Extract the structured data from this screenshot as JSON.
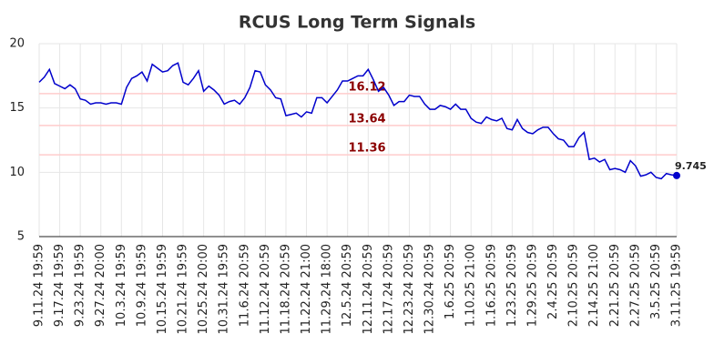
{
  "chart_data": {
    "type": "line",
    "title": "RCUS Long Term Signals",
    "categories": [
      "9.11.24 19:59",
      null,
      null,
      null,
      "9.17.24 19:59",
      null,
      null,
      null,
      "9.23.24 19:59",
      null,
      null,
      null,
      "9.27.24 20:00",
      null,
      null,
      null,
      "10.3.24 19:59",
      null,
      null,
      null,
      "10.9.24 19:59",
      null,
      null,
      null,
      "10.15.24 19:59",
      null,
      null,
      null,
      "10.21.24 19:59",
      null,
      null,
      null,
      "10.25.24 20:00",
      null,
      null,
      null,
      "10.31.24 19:59",
      null,
      null,
      null,
      "11.6.24 20:59",
      null,
      null,
      null,
      "11.12.24 20:59",
      null,
      null,
      null,
      "11.18.24 20:59",
      null,
      null,
      null,
      "11.22.24 21:00",
      null,
      null,
      null,
      "11.29.24 18:00",
      null,
      null,
      null,
      "12.5.24 20:59",
      null,
      null,
      null,
      "12.11.24 20:59",
      null,
      null,
      null,
      "12.17.24 20:59",
      null,
      null,
      null,
      "12.23.24 20:59",
      null,
      null,
      null,
      "12.30.24 20:59",
      null,
      null,
      null,
      "1.6.25 20:59",
      null,
      null,
      null,
      "1.10.25 21:00",
      null,
      null,
      null,
      "1.16.25 20:59",
      null,
      null,
      null,
      "1.23.25 20:59",
      null,
      null,
      null,
      "1.29.25 20:59",
      null,
      null,
      null,
      "2.4.25 20:59",
      null,
      null,
      null,
      "2.10.25 20:59",
      null,
      null,
      null,
      "2.14.25 21:00",
      null,
      null,
      null,
      "2.21.25 20:59",
      null,
      null,
      null,
      "2.27.25 20:59",
      null,
      null,
      null,
      "3.5.25 20:59",
      null,
      null,
      null,
      "3.11.25 19:59"
    ],
    "series": [
      {
        "name": "RCUS",
        "color": "#0000cc",
        "values": [
          17.0,
          17.4,
          18.0,
          16.9,
          16.7,
          16.5,
          16.8,
          16.5,
          15.7,
          15.6,
          15.3,
          15.4,
          15.4,
          15.3,
          15.4,
          15.4,
          15.3,
          16.6,
          17.3,
          17.5,
          17.8,
          17.1,
          18.4,
          18.1,
          17.8,
          17.9,
          18.3,
          18.5,
          17.0,
          16.8,
          17.3,
          17.9,
          16.3,
          16.7,
          16.4,
          16.0,
          15.3,
          15.5,
          15.6,
          15.3,
          15.8,
          16.6,
          17.9,
          17.8,
          16.8,
          16.4,
          15.8,
          15.7,
          14.4,
          14.5,
          14.6,
          14.3,
          14.7,
          14.6,
          15.8,
          15.8,
          15.4,
          15.9,
          16.4,
          17.1,
          17.1,
          17.3,
          17.5,
          17.5,
          18.0,
          17.2,
          16.3,
          16.6,
          16.0,
          15.2,
          15.5,
          15.5,
          16.0,
          15.9,
          15.9,
          15.3,
          14.9,
          14.9,
          15.2,
          15.1,
          14.9,
          15.3,
          14.9,
          14.9,
          14.2,
          13.9,
          13.8,
          14.3,
          14.1,
          14.0,
          14.2,
          13.4,
          13.3,
          14.1,
          13.4,
          13.1,
          13.0,
          13.3,
          13.5,
          13.5,
          13.0,
          12.6,
          12.5,
          12.0,
          12.0,
          12.7,
          13.1,
          11.0,
          11.1,
          10.8,
          11.0,
          10.2,
          10.3,
          10.2,
          10.0,
          10.9,
          10.5,
          9.7,
          9.8,
          10.0,
          9.6,
          9.5,
          9.9,
          9.8,
          9.745
        ]
      }
    ],
    "hlines": [
      {
        "value": 16.12,
        "color": "#ffcccc",
        "label_color": "#8b0000"
      },
      {
        "value": 13.64,
        "color": "#ffcccc",
        "label_color": "#8b0000"
      },
      {
        "value": 11.36,
        "color": "#ffcccc",
        "label_color": "#8b0000"
      }
    ],
    "ylim": [
      5,
      20
    ],
    "yticks": [
      5,
      10,
      15,
      20
    ],
    "grid": true
  }
}
